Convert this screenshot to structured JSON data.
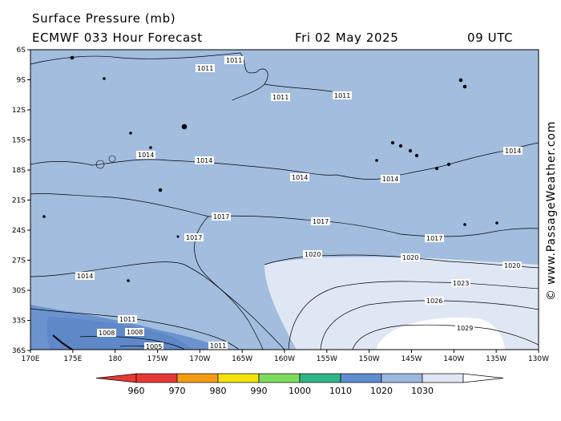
{
  "header": {
    "title": "Surface Pressure (mb)",
    "model_run": "ECMWF 033 Hour Forecast",
    "valid_date": "Fri 02 May 2025",
    "valid_time": "09 UTC"
  },
  "copyright": "© www.PassageWeather.com",
  "map": {
    "lat_ticks": [
      "6S",
      "9S",
      "12S",
      "15S",
      "18S",
      "21S",
      "24S",
      "27S",
      "30S",
      "33S",
      "36S"
    ],
    "lon_ticks": [
      "170E",
      "175E",
      "180",
      "175W",
      "170W",
      "165W",
      "160W",
      "155W",
      "150W",
      "145W",
      "140W",
      "135W",
      "130W"
    ],
    "isobar_labels": [
      "1011",
      "1014",
      "1017",
      "1020",
      "1023",
      "1026",
      "1029",
      "1008",
      "1005"
    ]
  },
  "legend": {
    "values": [
      "960",
      "970",
      "980",
      "990",
      "1000",
      "1010",
      "1020",
      "1030"
    ],
    "colors": [
      "#e53935",
      "#f39c12",
      "#f5e20b",
      "#7ddc5e",
      "#2eb58a",
      "#5e8dd0",
      "#9db9e0",
      "#dfe7f4"
    ],
    "end_left_color": "#e53935",
    "end_right_color": "#ffffff"
  },
  "colors": {
    "ocean_mid": "#a3bddf",
    "ocean_low": "#6b93cf",
    "ocean_high": "#dfe7f4",
    "ocean_peak": "#ffffff"
  }
}
